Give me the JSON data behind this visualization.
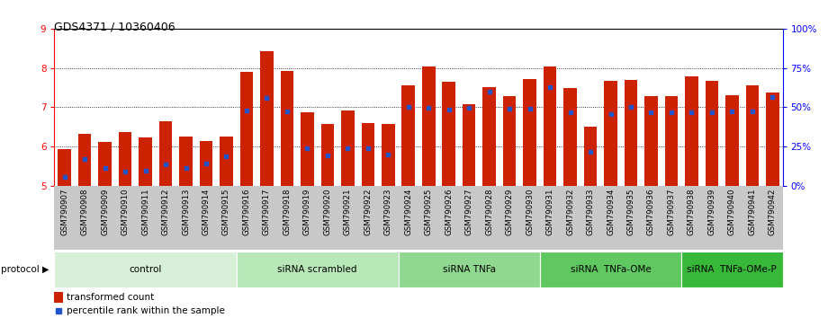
{
  "title": "GDS4371 / 10360406",
  "samples": [
    "GSM790907",
    "GSM790908",
    "GSM790909",
    "GSM790910",
    "GSM790911",
    "GSM790912",
    "GSM790913",
    "GSM790914",
    "GSM790915",
    "GSM790916",
    "GSM790917",
    "GSM790918",
    "GSM790919",
    "GSM790920",
    "GSM790921",
    "GSM790922",
    "GSM790923",
    "GSM790924",
    "GSM790925",
    "GSM790926",
    "GSM790927",
    "GSM790928",
    "GSM790929",
    "GSM790930",
    "GSM790931",
    "GSM790932",
    "GSM790933",
    "GSM790934",
    "GSM790935",
    "GSM790936",
    "GSM790937",
    "GSM790938",
    "GSM790939",
    "GSM790940",
    "GSM790941",
    "GSM790942"
  ],
  "bar_heights": [
    5.93,
    6.32,
    6.12,
    6.37,
    6.23,
    6.65,
    6.26,
    6.15,
    6.26,
    7.9,
    8.42,
    7.93,
    6.87,
    6.57,
    6.93,
    6.6,
    6.58,
    7.55,
    8.03,
    7.65,
    7.08,
    7.52,
    7.28,
    7.72,
    8.03,
    7.48,
    6.52,
    7.68,
    7.7,
    7.28,
    7.28,
    7.78,
    7.68,
    7.3,
    7.55,
    7.38
  ],
  "blue_positions": [
    5.22,
    5.68,
    5.47,
    5.37,
    5.38,
    5.56,
    5.47,
    5.57,
    5.76,
    6.92,
    7.25,
    6.9,
    5.95,
    5.77,
    5.97,
    5.95,
    5.79,
    7.02,
    6.99,
    6.95,
    6.98,
    7.41,
    6.97,
    6.96,
    7.51,
    6.87,
    5.86,
    6.83,
    7.02,
    6.87,
    6.87,
    6.87,
    6.87,
    6.9,
    6.9,
    7.27
  ],
  "groups": [
    {
      "label": "control",
      "start": 0,
      "end": 9,
      "color": "#d8f0d8"
    },
    {
      "label": "siRNA scrambled",
      "start": 9,
      "end": 17,
      "color": "#b8e8b8"
    },
    {
      "label": "siRNA TNFa",
      "start": 17,
      "end": 24,
      "color": "#90d890"
    },
    {
      "label": "siRNA  TNFa-OMe",
      "start": 24,
      "end": 31,
      "color": "#60c860"
    },
    {
      "label": "siRNA  TNFa-OMe-P",
      "start": 31,
      "end": 36,
      "color": "#38b838"
    }
  ],
  "ylim_left": [
    5.0,
    9.0
  ],
  "ylim_right": [
    0,
    100
  ],
  "yticks_left": [
    5,
    6,
    7,
    8,
    9
  ],
  "yticks_right": [
    0,
    25,
    50,
    75,
    100
  ],
  "ytick_right_labels": [
    "0%",
    "25%",
    "50%",
    "75%",
    "100%"
  ],
  "bar_color": "#cc2200",
  "blue_color": "#2255cc",
  "bg_color": "#ffffff",
  "title_fontsize": 9,
  "tick_fontsize": 7.5,
  "bar_width": 0.65,
  "xtick_bg": "#c8c8c8",
  "protocol_label": "protocol"
}
